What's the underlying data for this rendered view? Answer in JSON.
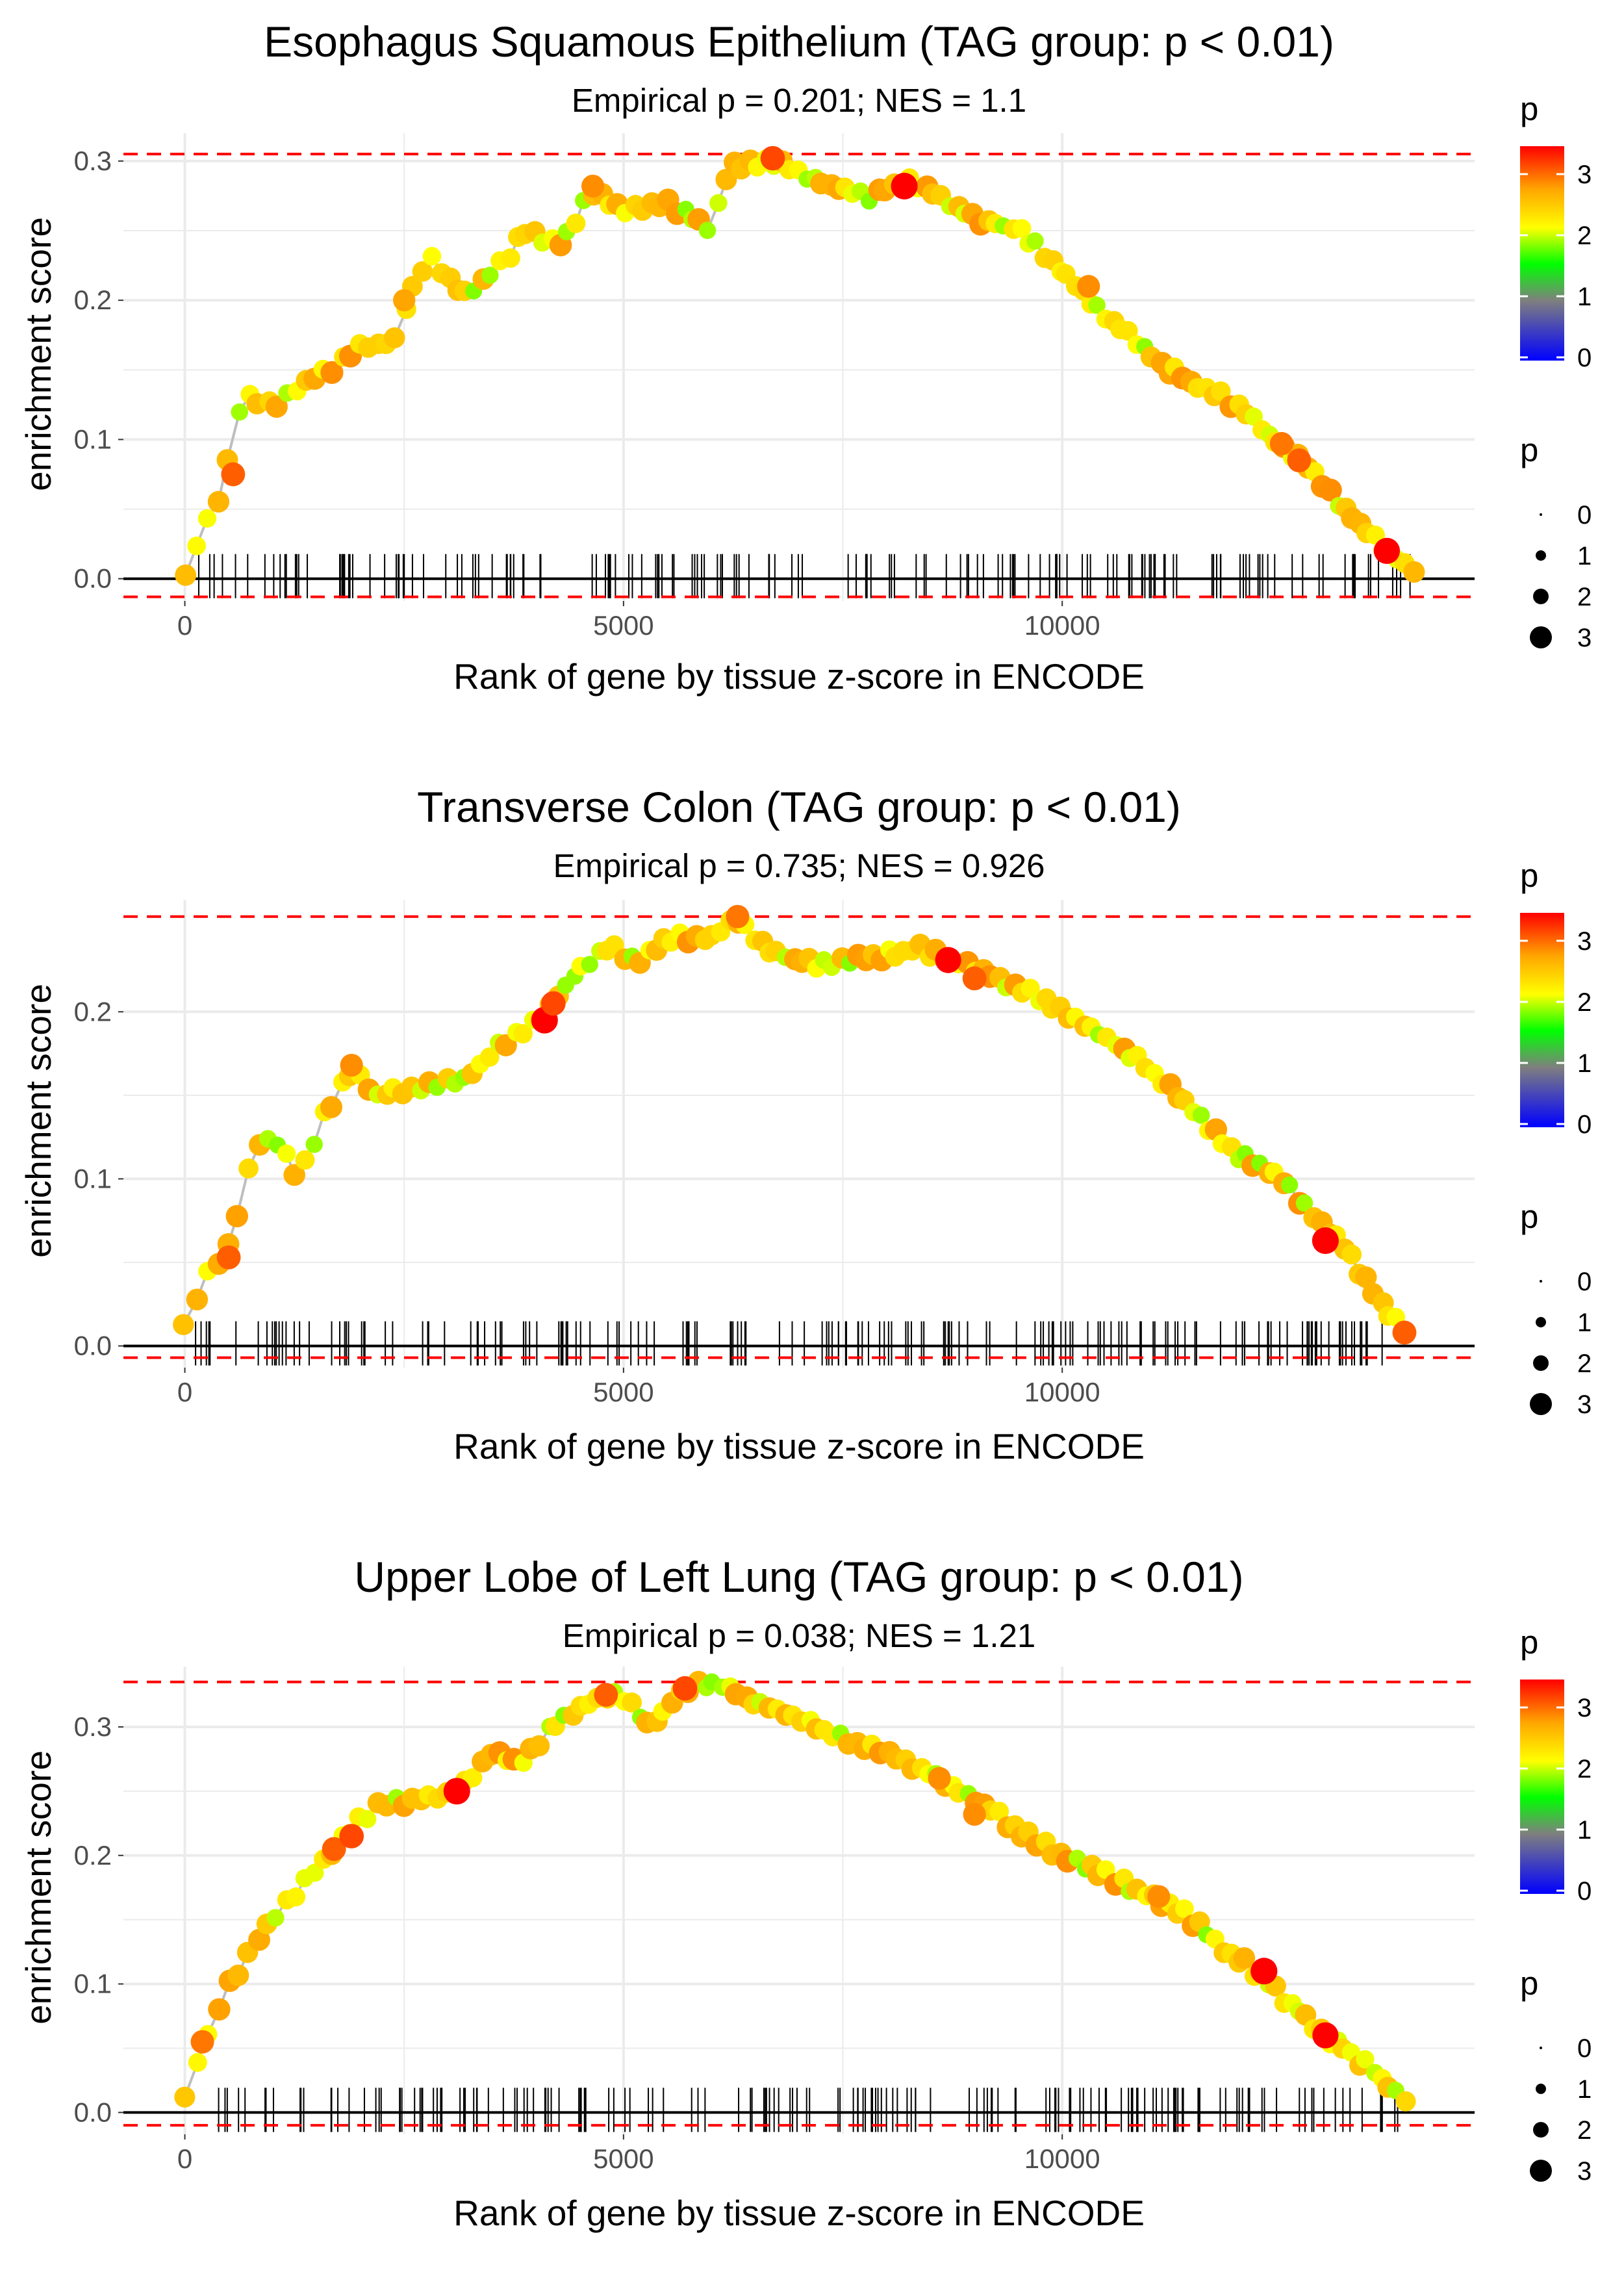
{
  "colors": {
    "gradient": [
      "#0000FF",
      "#7F7F7F",
      "#00FF00",
      "#FFFF00",
      "#FFA500",
      "#FF0000"
    ],
    "threshold_line": "#FF0000",
    "trend_line": "#BEBEBE",
    "grid": "#EBEBEB",
    "rug": "#000000"
  },
  "shared": {
    "xlabel": "Rank of gene by tissue z-score in ENCODE",
    "ylabel": "enrichment score",
    "legend_color_title": "p",
    "legend_color_ticks": [
      "0",
      "1",
      "2",
      "3"
    ],
    "legend_size_title": "p",
    "legend_size_labels": [
      "0",
      "1",
      "2",
      "3"
    ]
  },
  "chart_data": [
    {
      "type": "scatter",
      "title": "Esophagus Squamous Epithelium (TAG group: p < 0.01)",
      "subtitle": "Empirical p = 0.201; NES = 1.1",
      "xlabel": "Rank of gene by tissue z-score in ENCODE",
      "ylabel": "enrichment score",
      "xlim": [
        -700,
        14700
      ],
      "ylim": [
        -0.016,
        0.32
      ],
      "xticks": [
        0,
        5000,
        10000
      ],
      "xtick_labels": [
        "0",
        "5000",
        "10000"
      ],
      "yticks": [
        0,
        0.1,
        0.2,
        0.3
      ],
      "ytick_labels": [
        "0.0",
        "0.1",
        "0.2",
        "0.3"
      ],
      "hlines": {
        "max": 0.305,
        "min": -0.013,
        "zero": 0
      },
      "anchors": [
        [
          0,
          0
        ],
        [
          150,
          0.03
        ],
        [
          400,
          0.06
        ],
        [
          650,
          0.13
        ],
        [
          1000,
          0.125
        ],
        [
          1500,
          0.145
        ],
        [
          2000,
          0.165
        ],
        [
          2400,
          0.17
        ],
        [
          2600,
          0.21
        ],
        [
          2800,
          0.23
        ],
        [
          3200,
          0.205
        ],
        [
          3700,
          0.23
        ],
        [
          3850,
          0.25
        ],
        [
          4300,
          0.24
        ],
        [
          4650,
          0.28
        ],
        [
          5000,
          0.265
        ],
        [
          5500,
          0.27
        ],
        [
          6000,
          0.25
        ],
        [
          6200,
          0.295
        ],
        [
          6700,
          0.3
        ],
        [
          7200,
          0.285
        ],
        [
          7800,
          0.275
        ],
        [
          8200,
          0.285
        ],
        [
          8500,
          0.28
        ],
        [
          9000,
          0.26
        ],
        [
          9500,
          0.25
        ],
        [
          10000,
          0.22
        ],
        [
          10500,
          0.19
        ],
        [
          11000,
          0.16
        ],
        [
          11500,
          0.14
        ],
        [
          12000,
          0.125
        ],
        [
          12400,
          0.1
        ],
        [
          12800,
          0.08
        ],
        [
          13200,
          0.05
        ],
        [
          13700,
          0.02
        ],
        [
          14000,
          0.005
        ]
      ],
      "hot_points": [
        [
          550,
          0.075,
          3.2
        ],
        [
          4650,
          0.282,
          3.0
        ],
        [
          6700,
          0.302,
          3.3
        ],
        [
          8200,
          0.282,
          3.7
        ],
        [
          12500,
          0.097,
          3.1
        ],
        [
          12700,
          0.085,
          3.2
        ],
        [
          13700,
          0.02,
          3.6
        ],
        [
          10300,
          0.21,
          3.0
        ],
        [
          2500,
          0.2,
          2.9
        ]
      ],
      "n_points": 150
    },
    {
      "type": "scatter",
      "title": "Transverse Colon (TAG group: p < 0.01)",
      "subtitle": "Empirical p = 0.735; NES = 0.926",
      "xlabel": "Rank of gene by tissue z-score in ENCODE",
      "ylabel": "enrichment score",
      "xlim": [
        -700,
        14700
      ],
      "ylim": [
        -0.013,
        0.267
      ],
      "xticks": [
        0,
        5000,
        10000
      ],
      "xtick_labels": [
        "0",
        "5000",
        "10000"
      ],
      "yticks": [
        0,
        0.1,
        0.2
      ],
      "ytick_labels": [
        "0.0",
        "0.1",
        "0.2"
      ],
      "hlines": {
        "max": 0.257,
        "min": -0.007,
        "zero": 0
      },
      "anchors": [
        [
          0,
          0.01
        ],
        [
          200,
          0.04
        ],
        [
          500,
          0.06
        ],
        [
          800,
          0.12
        ],
        [
          1000,
          0.125
        ],
        [
          1300,
          0.1
        ],
        [
          1600,
          0.14
        ],
        [
          1900,
          0.165
        ],
        [
          2200,
          0.15
        ],
        [
          2700,
          0.155
        ],
        [
          3200,
          0.16
        ],
        [
          3600,
          0.18
        ],
        [
          4100,
          0.2
        ],
        [
          4500,
          0.225
        ],
        [
          4900,
          0.24
        ],
        [
          5100,
          0.23
        ],
        [
          5600,
          0.245
        ],
        [
          6000,
          0.245
        ],
        [
          6300,
          0.255
        ],
        [
          6700,
          0.235
        ],
        [
          7200,
          0.228
        ],
        [
          7800,
          0.232
        ],
        [
          8400,
          0.238
        ],
        [
          9000,
          0.225
        ],
        [
          9500,
          0.215
        ],
        [
          10000,
          0.2
        ],
        [
          10500,
          0.185
        ],
        [
          11000,
          0.165
        ],
        [
          11500,
          0.14
        ],
        [
          12000,
          0.115
        ],
        [
          12500,
          0.1
        ],
        [
          12900,
          0.075
        ],
        [
          13200,
          0.06
        ],
        [
          13500,
          0.035
        ],
        [
          13900,
          0.008
        ]
      ],
      "hot_points": [
        [
          500,
          0.053,
          3.2
        ],
        [
          1900,
          0.168,
          3.0
        ],
        [
          4100,
          0.195,
          3.7
        ],
        [
          4200,
          0.205,
          3.3
        ],
        [
          6300,
          0.257,
          3.1
        ],
        [
          8700,
          0.231,
          3.6
        ],
        [
          9000,
          0.22,
          3.2
        ],
        [
          13000,
          0.063,
          3.7
        ],
        [
          13900,
          0.008,
          3.2
        ]
      ],
      "n_points": 150
    },
    {
      "type": "scatter",
      "title": "Upper Lobe of Left Lung (TAG group: p < 0.01)",
      "subtitle": "Empirical p = 0.038; NES = 1.21",
      "xlabel": "Rank of gene by tissue z-score in ENCODE",
      "ylabel": "enrichment score",
      "xlim": [
        -700,
        14700
      ],
      "ylim": [
        -0.017,
        0.347
      ],
      "xticks": [
        0,
        5000,
        10000
      ],
      "xtick_labels": [
        "0",
        "5000",
        "10000"
      ],
      "yticks": [
        0,
        0.1,
        0.2,
        0.3
      ],
      "ytick_labels": [
        "0.0",
        "0.1",
        "0.2",
        "0.3"
      ],
      "hlines": {
        "max": 0.335,
        "min": -0.01,
        "zero": 0
      },
      "anchors": [
        [
          0,
          0.01
        ],
        [
          150,
          0.04
        ],
        [
          500,
          0.1
        ],
        [
          1000,
          0.15
        ],
        [
          1500,
          0.19
        ],
        [
          2000,
          0.23
        ],
        [
          2300,
          0.24
        ],
        [
          2800,
          0.245
        ],
        [
          3100,
          0.25
        ],
        [
          3500,
          0.28
        ],
        [
          3800,
          0.27
        ],
        [
          4200,
          0.3
        ],
        [
          4600,
          0.32
        ],
        [
          5000,
          0.325
        ],
        [
          5300,
          0.3
        ],
        [
          5700,
          0.33
        ],
        [
          6000,
          0.335
        ],
        [
          6500,
          0.32
        ],
        [
          7000,
          0.305
        ],
        [
          7500,
          0.29
        ],
        [
          8000,
          0.28
        ],
        [
          8600,
          0.26
        ],
        [
          9200,
          0.235
        ],
        [
          9700,
          0.21
        ],
        [
          10200,
          0.195
        ],
        [
          10800,
          0.175
        ],
        [
          11300,
          0.16
        ],
        [
          11800,
          0.13
        ],
        [
          12200,
          0.11
        ],
        [
          12600,
          0.085
        ],
        [
          13000,
          0.06
        ],
        [
          13500,
          0.035
        ],
        [
          13900,
          0.01
        ]
      ],
      "hot_points": [
        [
          200,
          0.055,
          3.1
        ],
        [
          1700,
          0.205,
          3.2
        ],
        [
          1900,
          0.215,
          3.3
        ],
        [
          3100,
          0.25,
          3.7
        ],
        [
          4800,
          0.325,
          3.2
        ],
        [
          5700,
          0.33,
          3.3
        ],
        [
          9000,
          0.232,
          3.0
        ],
        [
          11100,
          0.168,
          3.0
        ],
        [
          12300,
          0.11,
          3.7
        ],
        [
          13000,
          0.06,
          3.6
        ],
        [
          8600,
          0.26,
          3.0
        ]
      ],
      "n_points": 150
    }
  ]
}
